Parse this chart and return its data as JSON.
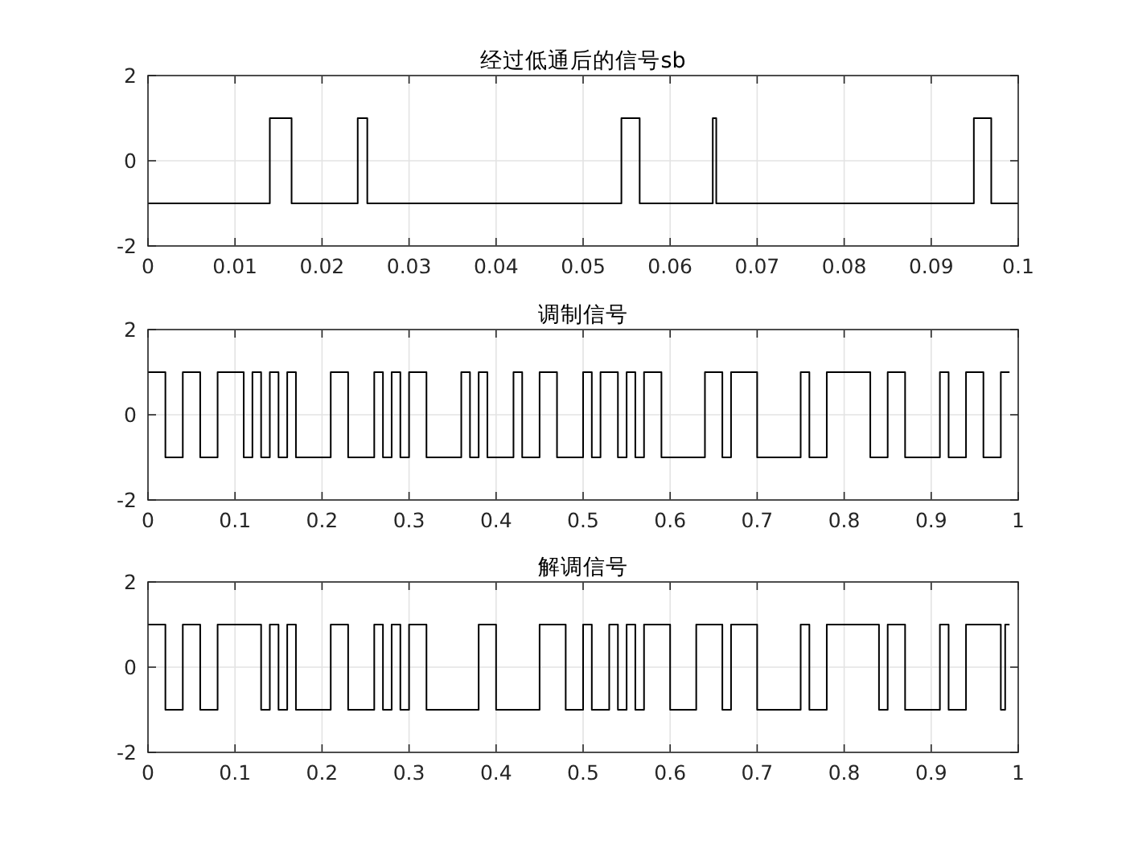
{
  "chart_data": [
    {
      "type": "step",
      "title": "经过低通后的信号sb",
      "x": [
        0,
        0.014,
        0.0165,
        0.0241,
        0.0252,
        0.0544,
        0.0565,
        0.0649,
        0.0653,
        0.0949,
        0.0969,
        0.1
      ],
      "series": [
        {
          "color": "#000000",
          "values": [
            -1,
            1,
            -1,
            1,
            -1,
            1,
            -1,
            1,
            -1,
            1,
            -1,
            -1
          ]
        }
      ],
      "xlim": [
        0,
        0.1
      ],
      "xticks": [
        0,
        0.01,
        0.02,
        0.03,
        0.04,
        0.05,
        0.06,
        0.07,
        0.08,
        0.09,
        0.1
      ],
      "ylim": [
        -2,
        2
      ],
      "yticks": [
        -2,
        0,
        2
      ],
      "grid": true
    },
    {
      "type": "step",
      "title": "调制信号",
      "x": [
        0,
        0.02,
        0.04,
        0.06,
        0.08,
        0.11,
        0.12,
        0.13,
        0.14,
        0.15,
        0.16,
        0.17,
        0.21,
        0.23,
        0.26,
        0.27,
        0.28,
        0.29,
        0.3,
        0.32,
        0.36,
        0.37,
        0.38,
        0.39,
        0.42,
        0.43,
        0.45,
        0.47,
        0.5,
        0.51,
        0.52,
        0.54,
        0.55,
        0.56,
        0.57,
        0.59,
        0.64,
        0.66,
        0.67,
        0.7,
        0.75,
        0.76,
        0.78,
        0.83,
        0.85,
        0.87,
        0.91,
        0.92,
        0.94,
        0.96,
        0.98,
        0.99
      ],
      "series": [
        {
          "color": "#000000",
          "values": [
            1,
            -1,
            1,
            -1,
            1,
            -1,
            1,
            -1,
            1,
            -1,
            1,
            -1,
            1,
            -1,
            1,
            -1,
            1,
            -1,
            1,
            -1,
            1,
            -1,
            1,
            -1,
            1,
            -1,
            1,
            -1,
            1,
            -1,
            1,
            -1,
            1,
            -1,
            1,
            -1,
            1,
            -1,
            1,
            -1,
            1,
            -1,
            1,
            -1,
            1,
            -1,
            1,
            -1,
            1,
            -1,
            1,
            1
          ]
        }
      ],
      "xlim": [
        0,
        1
      ],
      "xticks": [
        0,
        0.1,
        0.2,
        0.3,
        0.4,
        0.5,
        0.6,
        0.7,
        0.8,
        0.9,
        1
      ],
      "ylim": [
        -2,
        2
      ],
      "yticks": [
        -2,
        0,
        2
      ],
      "grid": true
    },
    {
      "type": "step",
      "title": "解调信号",
      "x": [
        0,
        0.02,
        0.04,
        0.06,
        0.08,
        0.13,
        0.14,
        0.15,
        0.16,
        0.17,
        0.21,
        0.23,
        0.26,
        0.27,
        0.28,
        0.29,
        0.3,
        0.32,
        0.38,
        0.4,
        0.45,
        0.48,
        0.5,
        0.51,
        0.53,
        0.54,
        0.55,
        0.56,
        0.57,
        0.6,
        0.63,
        0.66,
        0.67,
        0.7,
        0.75,
        0.76,
        0.78,
        0.84,
        0.85,
        0.87,
        0.91,
        0.92,
        0.94,
        0.98,
        0.985,
        0.99
      ],
      "series": [
        {
          "color": "#000000",
          "values": [
            1,
            -1,
            1,
            -1,
            1,
            -1,
            1,
            -1,
            1,
            -1,
            1,
            -1,
            1,
            -1,
            1,
            -1,
            1,
            -1,
            1,
            -1,
            1,
            -1,
            1,
            -1,
            1,
            -1,
            1,
            -1,
            1,
            -1,
            1,
            -1,
            1,
            -1,
            1,
            -1,
            1,
            -1,
            1,
            -1,
            1,
            -1,
            1,
            -1,
            1,
            1
          ]
        }
      ],
      "xlim": [
        0,
        1
      ],
      "xticks": [
        0,
        0.1,
        0.2,
        0.3,
        0.4,
        0.5,
        0.6,
        0.7,
        0.8,
        0.9,
        1
      ],
      "ylim": [
        -2,
        2
      ],
      "yticks": [
        -2,
        0,
        2
      ],
      "grid": true
    }
  ]
}
